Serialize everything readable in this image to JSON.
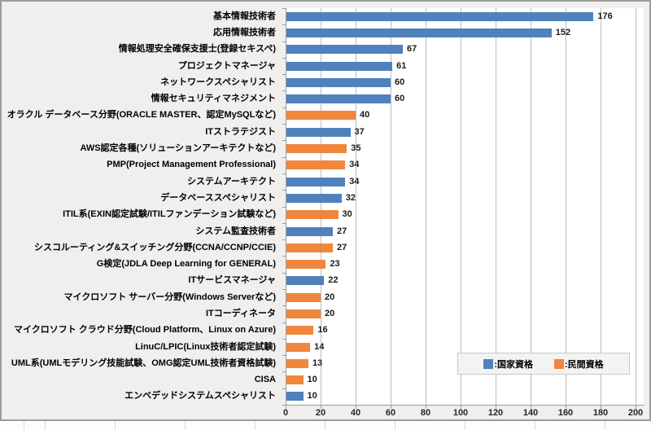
{
  "colors": {
    "national": "#4f81bd",
    "private": "#f0873c",
    "grid": "#bdbdbd",
    "axis": "#9c9c9c",
    "chart_bg": "#f0efee",
    "plot_bg": "#ffffff",
    "frame_border": "#9b9b9b",
    "legend_bg": "#f4f3f3",
    "legend_border": "#c9c9c9",
    "text": "#000000"
  },
  "chart_data": {
    "type": "bar",
    "orientation": "horizontal",
    "title": "",
    "xlabel": "",
    "ylabel": "",
    "xlim": [
      0,
      200
    ],
    "x_ticks": [
      "0",
      "20",
      "40",
      "60",
      "80",
      "100",
      "120",
      "140",
      "160",
      "180",
      "200"
    ],
    "grid": "vertical",
    "legend_position": "inside-bottom-right",
    "legend": [
      {
        "key": "national",
        "label": ":国家資格"
      },
      {
        "key": "private",
        "label": ":民間資格"
      }
    ],
    "bars": [
      {
        "label": "基本情報技術者",
        "value": 176,
        "series": "national"
      },
      {
        "label": "応用情報技術者",
        "value": 152,
        "series": "national"
      },
      {
        "label": "情報処理安全確保支援士(登録セキスペ)",
        "value": 67,
        "series": "national"
      },
      {
        "label": "プロジェクトマネージャ",
        "value": 61,
        "series": "national"
      },
      {
        "label": "ネットワークスペシャリスト",
        "value": 60,
        "series": "national"
      },
      {
        "label": "情報セキュリティマネジメント",
        "value": 60,
        "series": "national"
      },
      {
        "label": "オラクル データベース分野(ORACLE MASTER、認定MySQLなど)",
        "value": 40,
        "series": "private"
      },
      {
        "label": "ITストラテジスト",
        "value": 37,
        "series": "national"
      },
      {
        "label": "AWS認定各種(ソリューションアーキテクトなど)",
        "value": 35,
        "series": "private"
      },
      {
        "label": "PMP(Project Management Professional)",
        "value": 34,
        "series": "private"
      },
      {
        "label": "システムアーキテクト",
        "value": 34,
        "series": "national"
      },
      {
        "label": "データベーススペシャリスト",
        "value": 32,
        "series": "national"
      },
      {
        "label": "ITIL系(EXIN認定試験/ITILファンデーション試験など)",
        "value": 30,
        "series": "private"
      },
      {
        "label": "システム監査技術者",
        "value": 27,
        "series": "national"
      },
      {
        "label": "シスコルーティング&スイッチング分野(CCNA/CCNP/CCIE)",
        "value": 27,
        "series": "private"
      },
      {
        "label": "G検定(JDLA Deep Learning for GENERAL)",
        "value": 23,
        "series": "private"
      },
      {
        "label": "ITサービスマネージャ",
        "value": 22,
        "series": "national"
      },
      {
        "label": "マイクロソフト サーバー分野(Windows Serverなど)",
        "value": 20,
        "series": "private"
      },
      {
        "label": "ITコーディネータ",
        "value": 20,
        "series": "private"
      },
      {
        "label": "マイクロソフト クラウド分野(Cloud Platform、Linux on Azure)",
        "value": 16,
        "series": "private"
      },
      {
        "label": "LinuC/LPIC(Linux技術者認定試験)",
        "value": 14,
        "series": "private"
      },
      {
        "label": "UML系(UMLモデリング技能試験、OMG認定UML技術者資格試験)",
        "value": 13,
        "series": "private"
      },
      {
        "label": "CISA",
        "value": 10,
        "series": "private"
      },
      {
        "label": "エンベデッドシステムスペシャリスト",
        "value": 10,
        "series": "national"
      }
    ]
  }
}
